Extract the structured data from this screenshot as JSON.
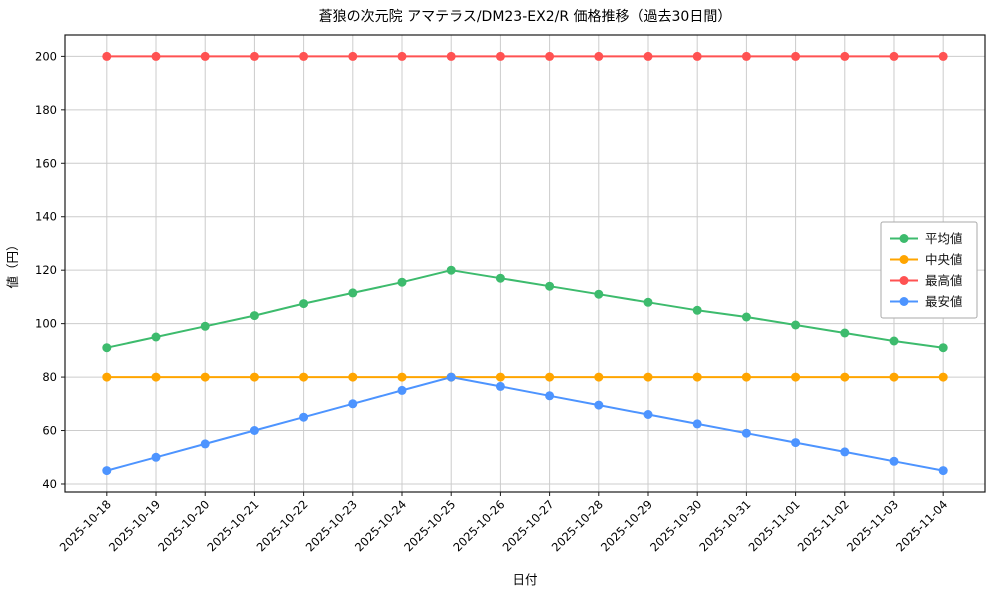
{
  "chart_data": {
    "type": "line",
    "title": "蒼狼の次元院 アマテラス/DM23-EX2/R 価格推移（過去30日間）",
    "xlabel": "日付",
    "ylabel": "値（円）",
    "ylim": [
      37,
      208
    ],
    "yticks": [
      40,
      60,
      80,
      100,
      120,
      140,
      160,
      180,
      200
    ],
    "grid": true,
    "legend_position": "right",
    "categories": [
      "2025-10-18",
      "2025-10-19",
      "2025-10-20",
      "2025-10-21",
      "2025-10-22",
      "2025-10-23",
      "2025-10-24",
      "2025-10-25",
      "2025-10-26",
      "2025-10-27",
      "2025-10-28",
      "2025-10-29",
      "2025-10-30",
      "2025-10-31",
      "2025-11-01",
      "2025-11-02",
      "2025-11-03",
      "2025-11-04"
    ],
    "series": [
      {
        "name": "平均値",
        "color": "#3dbb6d",
        "values": [
          91,
          95,
          99,
          103,
          107.5,
          111.5,
          115.5,
          120,
          117,
          114,
          111,
          108,
          105,
          102.5,
          99.5,
          96.5,
          93.5,
          91
        ]
      },
      {
        "name": "中央値",
        "color": "#ffa500",
        "values": [
          80,
          80,
          80,
          80,
          80,
          80,
          80,
          80,
          80,
          80,
          80,
          80,
          80,
          80,
          80,
          80,
          80,
          80
        ]
      },
      {
        "name": "最高値",
        "color": "#ff5252",
        "values": [
          200,
          200,
          200,
          200,
          200,
          200,
          200,
          200,
          200,
          200,
          200,
          200,
          200,
          200,
          200,
          200,
          200,
          200
        ]
      },
      {
        "name": "最安値",
        "color": "#4d94ff",
        "values": [
          45,
          50,
          55,
          60,
          65,
          70,
          75,
          80,
          76.5,
          73,
          69.5,
          66,
          62.5,
          59,
          55.5,
          52,
          48.5,
          45
        ]
      }
    ],
    "colors": {
      "grid": "#cccccc",
      "axis": "#1a1a1a",
      "text": "#000000",
      "legend_border": "#aaaaaa",
      "background": "#ffffff"
    }
  }
}
